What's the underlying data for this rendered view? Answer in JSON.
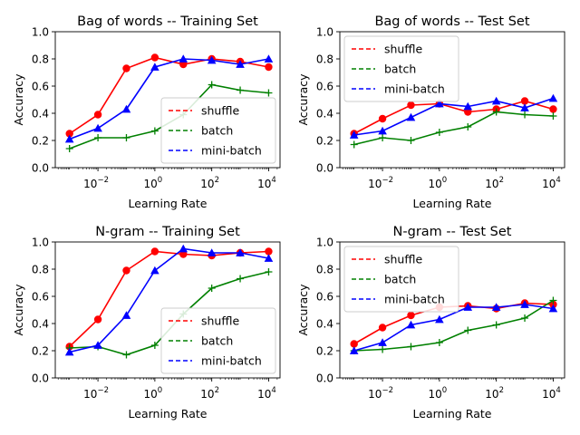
{
  "chart_data": [
    {
      "type": "line",
      "title": "Bag of words -- Training Set",
      "xlabel": "Learning Rate",
      "ylabel": "Accuracy",
      "xscale": "log",
      "xlim_exp": [
        -3.5,
        4.4
      ],
      "ylim": [
        0,
        1
      ],
      "yticks": [
        "0.0",
        "0.2",
        "0.4",
        "0.6",
        "0.8",
        "1.0"
      ],
      "xticks": [
        {
          "base": "10",
          "exp": "−2",
          "value": 0.01
        },
        {
          "base": "10",
          "exp": "0",
          "value": 1
        },
        {
          "base": "10",
          "exp": "2",
          "value": 100
        },
        {
          "base": "10",
          "exp": "4",
          "value": 10000
        }
      ],
      "legend_position": "lower-right",
      "x": [
        0.001,
        0.01,
        0.1,
        1,
        10,
        100,
        1000,
        10000
      ],
      "series": [
        {
          "name": "shuffle",
          "color": "#ff0000",
          "marker": "circle",
          "values": [
            0.25,
            0.39,
            0.73,
            0.81,
            0.76,
            0.8,
            0.78,
            0.74
          ]
        },
        {
          "name": "batch",
          "color": "#008000",
          "marker": "plus",
          "values": [
            0.14,
            0.22,
            0.22,
            0.27,
            0.39,
            0.61,
            0.57,
            0.55
          ]
        },
        {
          "name": "mini-batch",
          "color": "#0000ff",
          "marker": "triangle",
          "values": [
            0.21,
            0.29,
            0.43,
            0.74,
            0.8,
            0.79,
            0.76,
            0.8
          ]
        }
      ]
    },
    {
      "type": "line",
      "title": "Bag of words -- Test Set",
      "xlabel": "Learning Rate",
      "ylabel": "Accuracy",
      "xscale": "log",
      "xlim_exp": [
        -3.5,
        4.4
      ],
      "ylim": [
        0,
        1
      ],
      "yticks": [
        "0.0",
        "0.2",
        "0.4",
        "0.6",
        "0.8",
        "1.0"
      ],
      "xticks": [
        {
          "base": "10",
          "exp": "−2",
          "value": 0.01
        },
        {
          "base": "10",
          "exp": "0",
          "value": 1
        },
        {
          "base": "10",
          "exp": "2",
          "value": 100
        },
        {
          "base": "10",
          "exp": "4",
          "value": 10000
        }
      ],
      "legend_position": "upper-left",
      "x": [
        0.001,
        0.01,
        0.1,
        1,
        10,
        100,
        1000,
        10000
      ],
      "series": [
        {
          "name": "shuffle",
          "color": "#ff0000",
          "marker": "circle",
          "values": [
            0.25,
            0.36,
            0.46,
            0.47,
            0.41,
            0.43,
            0.49,
            0.43
          ]
        },
        {
          "name": "batch",
          "color": "#008000",
          "marker": "plus",
          "values": [
            0.17,
            0.22,
            0.2,
            0.26,
            0.3,
            0.41,
            0.39,
            0.38
          ]
        },
        {
          "name": "mini-batch",
          "color": "#0000ff",
          "marker": "triangle",
          "values": [
            0.24,
            0.27,
            0.37,
            0.47,
            0.45,
            0.49,
            0.44,
            0.51
          ]
        }
      ]
    },
    {
      "type": "line",
      "title": "N-gram -- Training Set",
      "xlabel": "Learning Rate",
      "ylabel": "Accuracy",
      "xscale": "log",
      "xlim_exp": [
        -3.5,
        4.4
      ],
      "ylim": [
        0,
        1
      ],
      "yticks": [
        "0.0",
        "0.2",
        "0.4",
        "0.6",
        "0.8",
        "1.0"
      ],
      "xticks": [
        {
          "base": "10",
          "exp": "−2",
          "value": 0.01
        },
        {
          "base": "10",
          "exp": "0",
          "value": 1
        },
        {
          "base": "10",
          "exp": "2",
          "value": 100
        },
        {
          "base": "10",
          "exp": "4",
          "value": 10000
        }
      ],
      "legend_position": "lower-right",
      "x": [
        0.001,
        0.01,
        0.1,
        1,
        10,
        100,
        1000,
        10000
      ],
      "series": [
        {
          "name": "shuffle",
          "color": "#ff0000",
          "marker": "circle",
          "values": [
            0.23,
            0.43,
            0.79,
            0.93,
            0.91,
            0.9,
            0.92,
            0.93
          ]
        },
        {
          "name": "batch",
          "color": "#008000",
          "marker": "plus",
          "values": [
            0.22,
            0.23,
            0.17,
            0.24,
            0.47,
            0.66,
            0.73,
            0.78
          ]
        },
        {
          "name": "mini-batch",
          "color": "#0000ff",
          "marker": "triangle",
          "values": [
            0.19,
            0.24,
            0.46,
            0.79,
            0.95,
            0.92,
            0.92,
            0.88
          ]
        }
      ]
    },
    {
      "type": "line",
      "title": "N-gram -- Test Set",
      "xlabel": "Learning Rate",
      "ylabel": "Accuracy",
      "xscale": "log",
      "xlim_exp": [
        -3.5,
        4.4
      ],
      "ylim": [
        0,
        1
      ],
      "yticks": [
        "0.0",
        "0.2",
        "0.4",
        "0.6",
        "0.8",
        "1.0"
      ],
      "xticks": [
        {
          "base": "10",
          "exp": "−2",
          "value": 0.01
        },
        {
          "base": "10",
          "exp": "0",
          "value": 1
        },
        {
          "base": "10",
          "exp": "2",
          "value": 100
        },
        {
          "base": "10",
          "exp": "4",
          "value": 10000
        }
      ],
      "legend_position": "upper-left",
      "x": [
        0.001,
        0.01,
        0.1,
        1,
        10,
        100,
        1000,
        10000
      ],
      "series": [
        {
          "name": "shuffle",
          "color": "#ff0000",
          "marker": "circle",
          "values": [
            0.25,
            0.37,
            0.46,
            0.52,
            0.53,
            0.51,
            0.55,
            0.54
          ]
        },
        {
          "name": "batch",
          "color": "#008000",
          "marker": "plus",
          "values": [
            0.2,
            0.21,
            0.23,
            0.26,
            0.35,
            0.39,
            0.44,
            0.57
          ]
        },
        {
          "name": "mini-batch",
          "color": "#0000ff",
          "marker": "triangle",
          "values": [
            0.2,
            0.26,
            0.39,
            0.43,
            0.52,
            0.52,
            0.54,
            0.51
          ]
        }
      ]
    }
  ]
}
